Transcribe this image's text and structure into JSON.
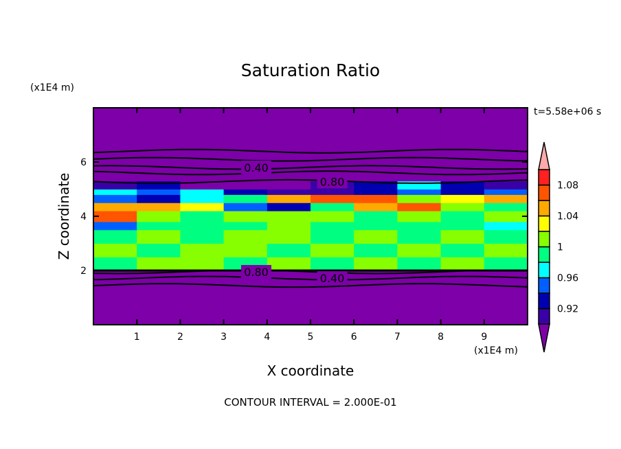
{
  "chart_data": {
    "type": "heatmap",
    "title": "Saturation Ratio",
    "xlabel": "X coordinate",
    "ylabel": "Z coordinate",
    "x_unit": "(x1E4 m)",
    "y_unit": "(x1E4 m)",
    "annotation_time": "t=5.58e+06 s",
    "footer": "CONTOUR INTERVAL = 2.000E-01",
    "xlim": [
      0,
      10
    ],
    "ylim": [
      0,
      8
    ],
    "xticks": [
      "1",
      "2",
      "3",
      "4",
      "5",
      "6",
      "7",
      "8",
      "9"
    ],
    "yticks": [
      "2",
      "4",
      "6"
    ],
    "colorbar": {
      "levels": [
        0.9,
        0.92,
        0.94,
        0.96,
        0.98,
        1.0,
        1.02,
        1.04,
        1.06,
        1.08,
        1.1
      ],
      "tick_labels": [
        "0.92",
        "0.96",
        "1",
        "1.04",
        "1.08"
      ],
      "colors": [
        "#3a00a8",
        "#0000b0",
        "#0060ff",
        "#00ffff",
        "#00ff80",
        "#88ff00",
        "#ffff00",
        "#ffaa00",
        "#ff5500",
        "#ff2020"
      ],
      "under_color": "#7d00a8",
      "over_color": "#ffaaaa"
    },
    "field_columns_x": [
      0.5,
      1.5,
      2.5,
      3.5,
      4.5,
      5.5,
      6.5,
      7.5,
      8.5,
      9.5
    ],
    "field_rows": [
      {
        "z": [
          0,
          2.0
        ],
        "values": [
          0.3,
          0.3,
          0.3,
          0.3,
          0.3,
          0.3,
          0.3,
          0.3,
          0.3,
          0.3
        ]
      },
      {
        "z": [
          2.0,
          2.5
        ],
        "values": [
          0.99,
          1.01,
          1.01,
          0.99,
          1.01,
          0.99,
          1.01,
          0.99,
          1.01,
          0.99
        ]
      },
      {
        "z": [
          2.5,
          3.0
        ],
        "values": [
          1.01,
          0.99,
          1.01,
          1.01,
          0.99,
          1.01,
          0.99,
          1.01,
          0.99,
          1.01
        ]
      },
      {
        "z": [
          3.0,
          3.5
        ],
        "values": [
          0.99,
          1.01,
          0.99,
          1.01,
          1.01,
          0.99,
          1.01,
          0.99,
          1.01,
          0.99
        ]
      },
      {
        "z": [
          3.5,
          3.8
        ],
        "values": [
          0.95,
          0.99,
          0.99,
          0.99,
          1.01,
          0.99,
          0.99,
          0.99,
          0.99,
          0.97
        ]
      },
      {
        "z": [
          3.8,
          4.2
        ],
        "values": [
          1.07,
          1.01,
          0.99,
          1.01,
          1.01,
          1.01,
          0.99,
          1.01,
          0.99,
          1.01
        ]
      },
      {
        "z": [
          4.2,
          4.5
        ],
        "values": [
          1.05,
          1.05,
          1.03,
          0.95,
          0.93,
          0.99,
          1.05,
          1.07,
          1.01,
          0.99
        ]
      },
      {
        "z": [
          4.5,
          4.8
        ],
        "values": [
          0.95,
          0.93,
          0.97,
          0.99,
          1.05,
          1.07,
          1.07,
          1.01,
          1.03,
          1.05
        ]
      },
      {
        "z": [
          4.8,
          5.0
        ],
        "values": [
          0.97,
          0.95,
          0.97,
          0.93,
          0.91,
          0.91,
          0.93,
          0.95,
          0.93,
          0.95
        ]
      },
      {
        "z": [
          5.0,
          5.3
        ],
        "values": [
          0.91,
          0.93,
          0.5,
          0.5,
          0.5,
          0.91,
          0.93,
          0.97,
          0.93,
          0.91
        ]
      },
      {
        "z": [
          5.3,
          8.0
        ],
        "values": [
          0.3,
          0.3,
          0.3,
          0.3,
          0.3,
          0.3,
          0.3,
          0.3,
          0.3,
          0.3
        ]
      }
    ],
    "contours": [
      {
        "value": "",
        "z": 6.4
      },
      {
        "value": "",
        "z": 6.1
      },
      {
        "value": "0.40",
        "z": 5.8
      },
      {
        "value": "",
        "z": 5.6
      },
      {
        "value": "0.80",
        "z": 5.28
      },
      {
        "value": "0.80",
        "z": 1.95
      },
      {
        "value": "0.40",
        "z": 1.72
      },
      {
        "value": "",
        "z": 1.45
      }
    ]
  }
}
